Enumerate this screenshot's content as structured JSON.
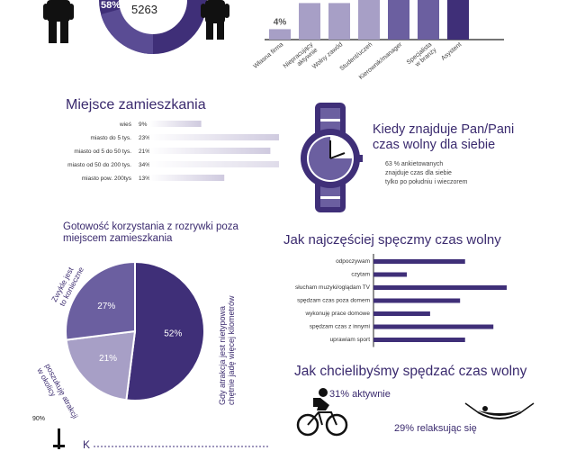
{
  "colors": {
    "dark": "#3f2f78",
    "mid": "#6b5fa0",
    "light": "#a79fc6",
    "pale": "#e9e6f2",
    "black": "#111111"
  },
  "top_donut": {
    "percent": "58%",
    "total": "5263"
  },
  "chart_data": [
    {
      "type": "bar",
      "id": "occupation",
      "categories": [
        "Własna firma",
        "Niepracujący aktywnie",
        "Wolny zawód",
        "Student/uczeń",
        "Kierownik/manager",
        "Specjalista w branży",
        "Asystent"
      ],
      "category_lines": [
        [
          "Własna firma"
        ],
        [
          "Niepracujący",
          "aktywnie"
        ],
        [
          "Wolny zawód"
        ],
        [
          "Student/uczeń"
        ],
        [
          "Kierownik/manager"
        ],
        [
          "Specjalista",
          "w branży"
        ],
        [
          "Asystent"
        ]
      ],
      "values": [
        4,
        14,
        14,
        16,
        16,
        16,
        16
      ],
      "value_labels": [
        "4%"
      ]
    },
    {
      "type": "bar",
      "id": "residence",
      "title": "Miejsce zamieszkania",
      "categories": [
        "wieś",
        "miasto do 5 tys.",
        "miasto od 5 do 50 tys.",
        "miasto od 50 do 200 tys.",
        "miasto pow. 200tys"
      ],
      "values": [
        9,
        23,
        21,
        34,
        13
      ],
      "value_labels": [
        "9%",
        "23%",
        "21%",
        "34%",
        "13%"
      ]
    },
    {
      "type": "pie",
      "id": "readiness",
      "title": "Gotowość korzystania z rozrywki poza miejscem zamieszkania",
      "categories": [
        "Gdy atrakcja jest nietypowa chętnie jadę więcej kilometrów",
        "poszukuję atrakcji w okolicy",
        "Zwykle jest to konieczne"
      ],
      "values": [
        52,
        21,
        27
      ],
      "value_labels": [
        "52%",
        "21%",
        "27%"
      ]
    },
    {
      "type": "bar",
      "id": "free_time",
      "title": "Jak najczęściej spęczmy czas wolny",
      "categories": [
        "odpoczywam",
        "czytam",
        "słucham muzyki/oglądam TV",
        "spędzam czas poza domem",
        "wykonuję prace domowe",
        "spędzam czas z innymi",
        "uprawiam sport"
      ],
      "values": [
        55,
        20,
        80,
        52,
        34,
        72,
        55
      ]
    }
  ],
  "watch": {
    "title": "Kiedy znajduje Pan/Pani czas wolny dla siebie",
    "lines": [
      "63 % ankietowanych",
      "znajduje czas dla siebie",
      "tylko po południu i wieczorem"
    ]
  },
  "wish": {
    "title": "Jak chcielibyśmy spędzać czas wolny",
    "active": "31% aktywnie",
    "relax": "29% relaksując się"
  },
  "bottom": {
    "percent": "90%",
    "caption": "K"
  }
}
